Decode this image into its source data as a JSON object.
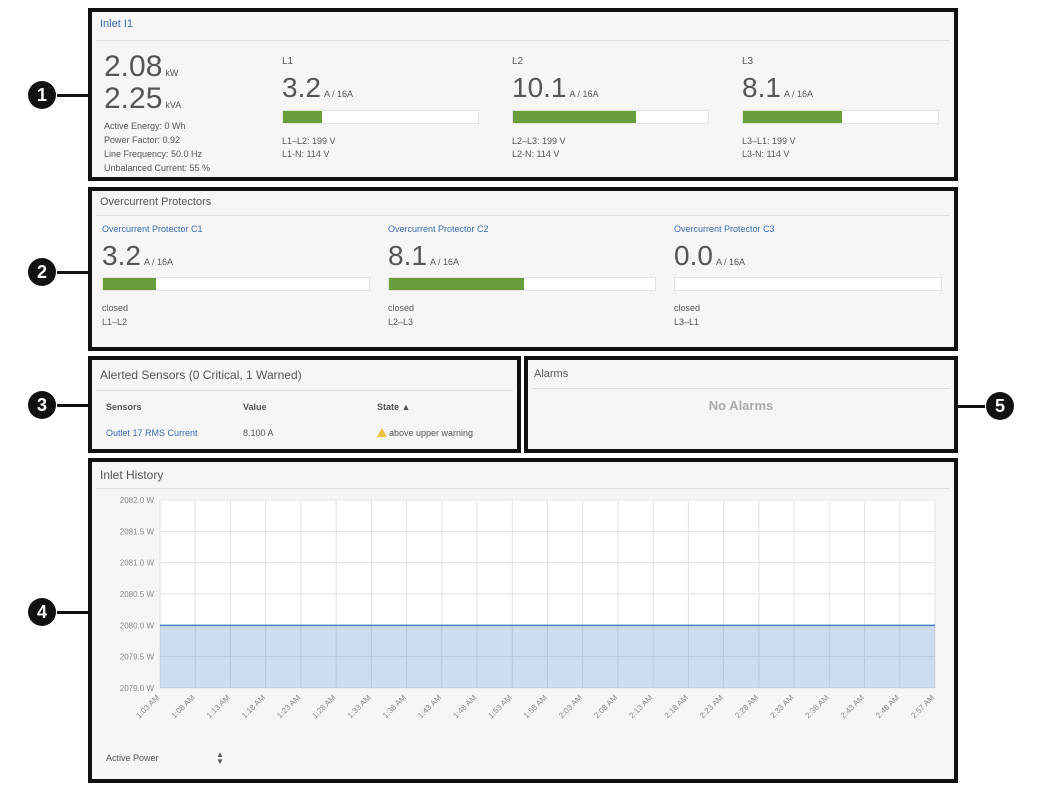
{
  "callouts": [
    "1",
    "2",
    "3",
    "4",
    "5"
  ],
  "inlet": {
    "title": "Inlet I1",
    "power": {
      "value": 2.08,
      "unit": "kW"
    },
    "apparent_power": {
      "value": 2.25,
      "unit": "kVA"
    },
    "details": [
      "Active Energy: 0 Wh",
      "Power Factor: 0.92",
      "Line Frequency: 50.0 Hz",
      "Unbalanced Current: 55 %"
    ],
    "lines": [
      {
        "name": "L1",
        "current": 3.2,
        "rating": {
          "value": 16,
          "label": "A / 16A"
        },
        "voltages": [
          "L1–L2: 199 V",
          "L1-N: 114 V"
        ]
      },
      {
        "name": "L2",
        "current": 10.1,
        "rating": {
          "value": 16,
          "label": "A / 16A"
        },
        "voltages": [
          "L2–L3: 199 V",
          "L2-N: 114 V"
        ]
      },
      {
        "name": "L3",
        "current": 8.1,
        "rating": {
          "value": 16,
          "label": "A / 16A"
        },
        "voltages": [
          "L3–L1: 199 V",
          "L3-N: 114 V"
        ]
      }
    ]
  },
  "protectors": {
    "title": "Overcurrent Protectors",
    "items": [
      {
        "name": "Overcurrent Protector C1",
        "current": 3.2,
        "rating": {
          "value": 16,
          "label": "A / 16A"
        },
        "state": "closed",
        "lines": "L1–L2"
      },
      {
        "name": "Overcurrent Protector C2",
        "current": 8.1,
        "rating": {
          "value": 16,
          "label": "A / 16A"
        },
        "state": "closed",
        "lines": "L2–L3"
      },
      {
        "name": "Overcurrent Protector C3",
        "current": {
          "value": 0,
          "label": "0.0"
        },
        "rating": {
          "value": 16,
          "label": "A / 16A"
        },
        "state": "closed",
        "lines": "L3–L1"
      }
    ]
  },
  "alerted_sensors": {
    "title": "Alerted Sensors (0 Critical, 1 Warned)",
    "columns": [
      "Sensors",
      "Value",
      "State ▲"
    ],
    "rows": [
      [
        "Outlet 17 RMS Current",
        "8.100 A",
        "above upper warning"
      ]
    ]
  },
  "alarms": {
    "title": "Alarms",
    "message": "No Alarms"
  },
  "history": {
    "title": "Inlet History",
    "selector": "Active Power",
    "chart_data": {
      "type": "area",
      "categories": [
        "1:03 AM",
        "1:08 AM",
        "1:13 AM",
        "1:18 AM",
        "1:23 AM",
        "1:28 AM",
        "1:33 AM",
        "1:38 AM",
        "1:43 AM",
        "1:48 AM",
        "1:53 AM",
        "1:58 AM",
        "2:03 AM",
        "2:08 AM",
        "2:13 AM",
        "2:18 AM",
        "2:23 AM",
        "2:28 AM",
        "2:33 AM",
        "2:38 AM",
        "2:43 AM",
        "2:48 AM",
        "2:57 AM"
      ],
      "series": [
        {
          "name": "Active Power",
          "color": "#4a80c4",
          "values": [
            2080,
            2080,
            2080,
            2080,
            2080,
            2080,
            2080,
            2080,
            2080,
            2080,
            2080,
            2080,
            2080,
            2080,
            2080,
            2080,
            2080,
            2080,
            2080,
            2080,
            2080,
            2080,
            2080
          ]
        }
      ],
      "ylim": [
        2079,
        2082
      ],
      "yticks": [
        {
          "value": 2082,
          "label": "2082.0 W"
        },
        {
          "value": 2081.5,
          "label": "2081.5 W"
        },
        {
          "value": 2081,
          "label": "2081.0 W"
        },
        {
          "value": 2080.5,
          "label": "2080.5 W"
        },
        {
          "value": 2080,
          "label": "2080.0 W"
        },
        {
          "value": 2079.5,
          "label": "2079.5 W"
        },
        {
          "value": 2079,
          "label": "2079.0 W"
        }
      ],
      "grid": true
    }
  }
}
